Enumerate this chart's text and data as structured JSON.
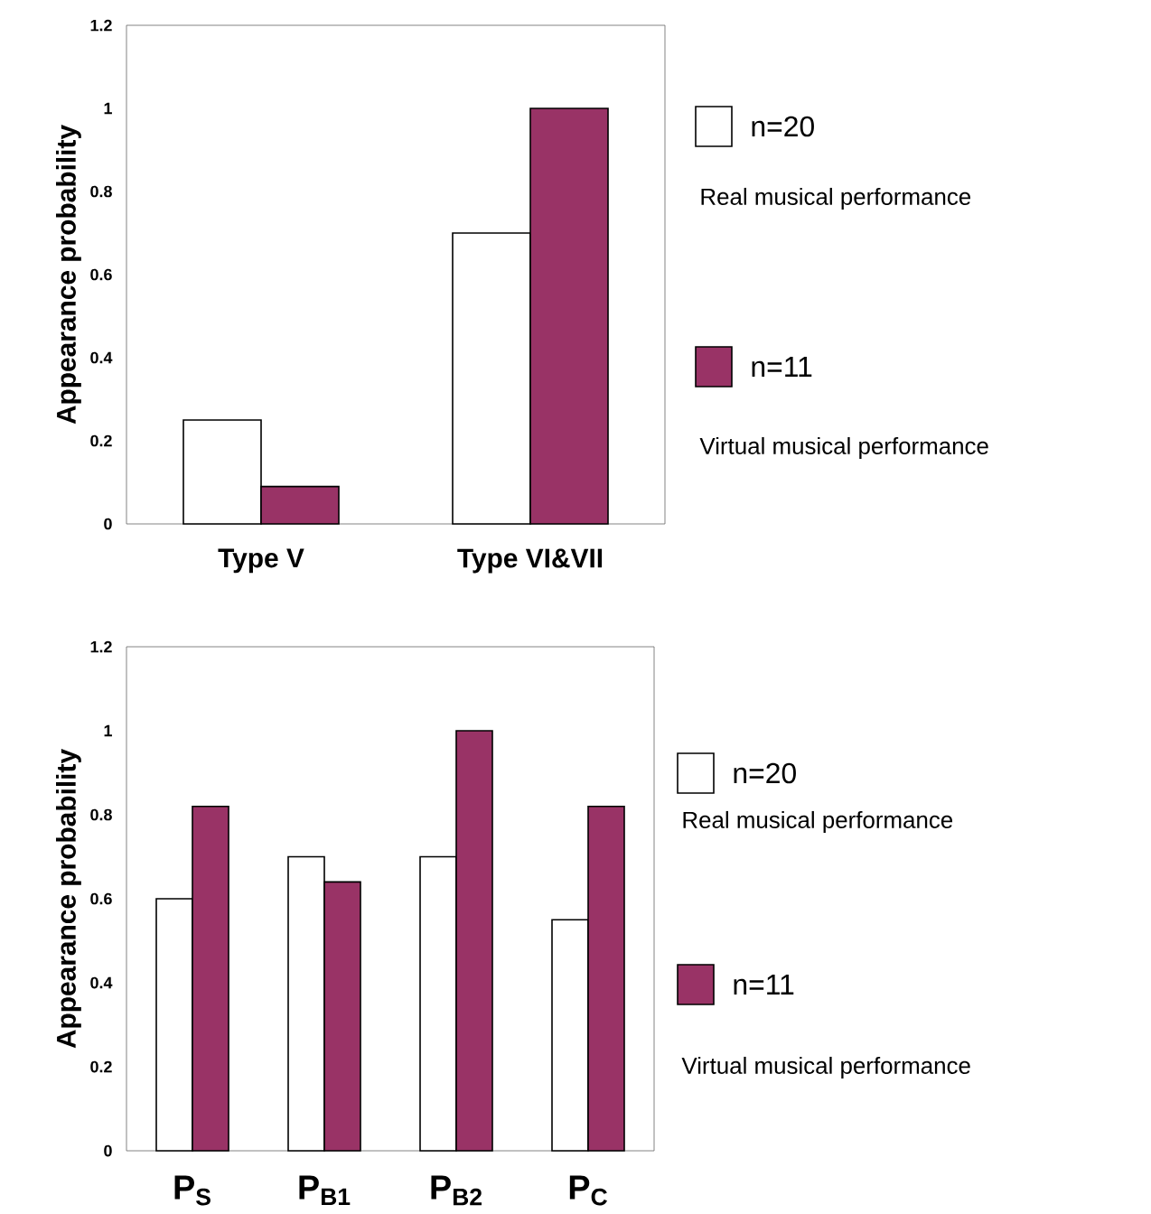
{
  "chart_data": [
    {
      "type": "bar",
      "ylabel": "Appearance probability",
      "categories": [
        "Type V",
        "Type VI&VII"
      ],
      "series": [
        {
          "name": "n=20",
          "color": "#ffffff",
          "values": [
            0.25,
            0.7
          ]
        },
        {
          "name": "n=11",
          "color": "#993366",
          "values": [
            0.09,
            1.0
          ]
        }
      ],
      "annotations": [
        "Real musical performance",
        "Virtual musical performance"
      ],
      "ylim": [
        0,
        1.2
      ],
      "yticks": [
        0,
        0.2,
        0.4,
        0.6,
        0.8,
        1,
        1.2
      ],
      "legend": "right"
    },
    {
      "type": "bar",
      "ylabel": "Appearance probability",
      "categories": [
        "P$_{S}$",
        "P$_{B1}$",
        "P$_{B2}$",
        "P$_{C}$"
      ],
      "series": [
        {
          "name": "n=20",
          "color": "#ffffff",
          "values": [
            0.6,
            0.7,
            0.7,
            0.55
          ]
        },
        {
          "name": "n=11",
          "color": "#993366",
          "values": [
            0.82,
            0.64,
            1.0,
            0.82
          ]
        }
      ],
      "annotations": [
        "Real musical performance",
        "Virtual musical performance"
      ],
      "ylim": [
        0,
        1.2
      ],
      "yticks": [
        0,
        0.2,
        0.4,
        0.6,
        0.8,
        1,
        1.2
      ],
      "legend": "right"
    }
  ]
}
